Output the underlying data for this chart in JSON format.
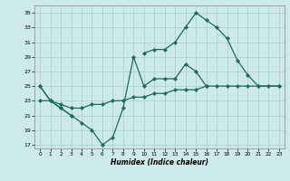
{
  "xlabel": "Humidex (Indice chaleur)",
  "background_color": "#cceae8",
  "grid_color": "#aacccc",
  "line_color": "#1a6b60",
  "xlim": [
    -0.5,
    23.5
  ],
  "ylim": [
    16.5,
    36
  ],
  "yticks": [
    17,
    19,
    21,
    23,
    25,
    27,
    29,
    31,
    33,
    35
  ],
  "xticks": [
    0,
    1,
    2,
    3,
    4,
    5,
    6,
    7,
    8,
    9,
    10,
    11,
    12,
    13,
    14,
    15,
    16,
    17,
    18,
    19,
    20,
    21,
    22,
    23
  ],
  "line_volatile_x": [
    0,
    1,
    2,
    3,
    4,
    5,
    6,
    7,
    8,
    9,
    10,
    11,
    12,
    13,
    14,
    15,
    16
  ],
  "line_volatile_y": [
    25,
    23,
    22,
    21,
    20,
    19,
    17,
    18,
    22,
    29,
    25,
    26,
    26,
    26,
    28,
    27,
    25
  ],
  "line_top_x": [
    0,
    1,
    2,
    3,
    10,
    11,
    12,
    13,
    14,
    15,
    16,
    17,
    18,
    19,
    20,
    21,
    23
  ],
  "line_top_y": [
    25,
    23,
    22,
    21,
    29.5,
    30,
    30,
    31,
    33,
    35,
    34,
    33,
    31.5,
    28.5,
    26.5,
    25,
    25
  ],
  "line_bottom_x": [
    0,
    1,
    2,
    3,
    4,
    5,
    6,
    7,
    8,
    9,
    10,
    11,
    12,
    13,
    14,
    15,
    16,
    17,
    18,
    19,
    20,
    21,
    22,
    23
  ],
  "line_bottom_y": [
    23,
    23,
    22.5,
    22,
    22,
    22.5,
    22.5,
    23,
    23,
    23.5,
    23.5,
    24,
    24,
    24.5,
    24.5,
    24.5,
    25,
    25,
    25,
    25,
    25,
    25,
    25,
    25
  ]
}
